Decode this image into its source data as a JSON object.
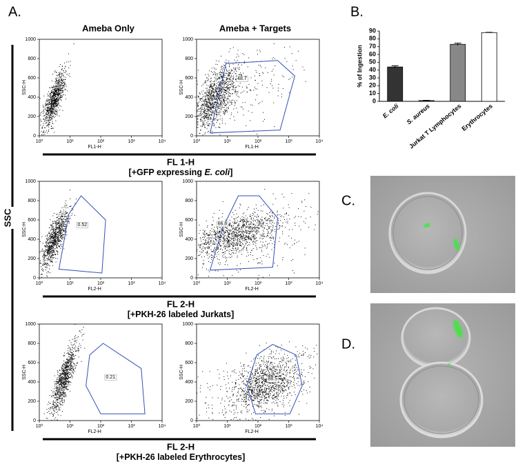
{
  "panel_labels": {
    "a": "A.",
    "b": "B.",
    "c": "C.",
    "d": "D."
  },
  "flow": {
    "column_titles": [
      "Ameba Only",
      "Ameba + Targets"
    ],
    "y_axis_title": "SSC",
    "y_label": "SSC-H",
    "xscale": "log",
    "xlim": [
      1,
      10000
    ],
    "xticks": [
      {
        "value": 1,
        "label": "10⁰"
      },
      {
        "value": 10,
        "label": "10¹"
      },
      {
        "value": 100,
        "label": "10²"
      },
      {
        "value": 1000,
        "label": "10³"
      },
      {
        "value": 10000,
        "label": "10⁴"
      }
    ],
    "ylim": [
      0,
      1000
    ],
    "yticks": [
      0,
      200,
      400,
      600,
      800,
      1000
    ],
    "rows": [
      {
        "axis_title": "FL 1-H",
        "x_label": "FL1-H",
        "condition": {
          "before": "[+GFP expressing ",
          "italic": "E. coli",
          "after": "]"
        },
        "gates": [
          null,
          48.7
        ]
      },
      {
        "axis_title": "FL 2-H",
        "x_label": "FL2-H",
        "condition": {
          "before": "[+PKH-26 labeled Jurkats]"
        },
        "gates": [
          0.52,
          66.8
        ]
      },
      {
        "axis_title": "FL 2-H",
        "x_label": "FL2-H",
        "condition": {
          "before": "[+PKH-26 labeled Erythrocytes]"
        },
        "gates": [
          0.21,
          88.5
        ]
      }
    ]
  },
  "chart_data": {
    "type": "bar",
    "ylabel": "% of Ingestion",
    "categories": [
      "E. coli",
      "S. aureus",
      "Jurkat T Lymphocytes",
      "Erythrocytes"
    ],
    "values": [
      44,
      1,
      73,
      88
    ],
    "errors": [
      1.5,
      0.3,
      1.5,
      0.3
    ],
    "colors": [
      "#333333",
      "#555555",
      "#888888",
      "#ffffff"
    ],
    "ylim": [
      0,
      90
    ],
    "yticks": [
      0,
      10,
      20,
      30,
      40,
      50,
      60,
      70,
      80,
      90
    ]
  }
}
